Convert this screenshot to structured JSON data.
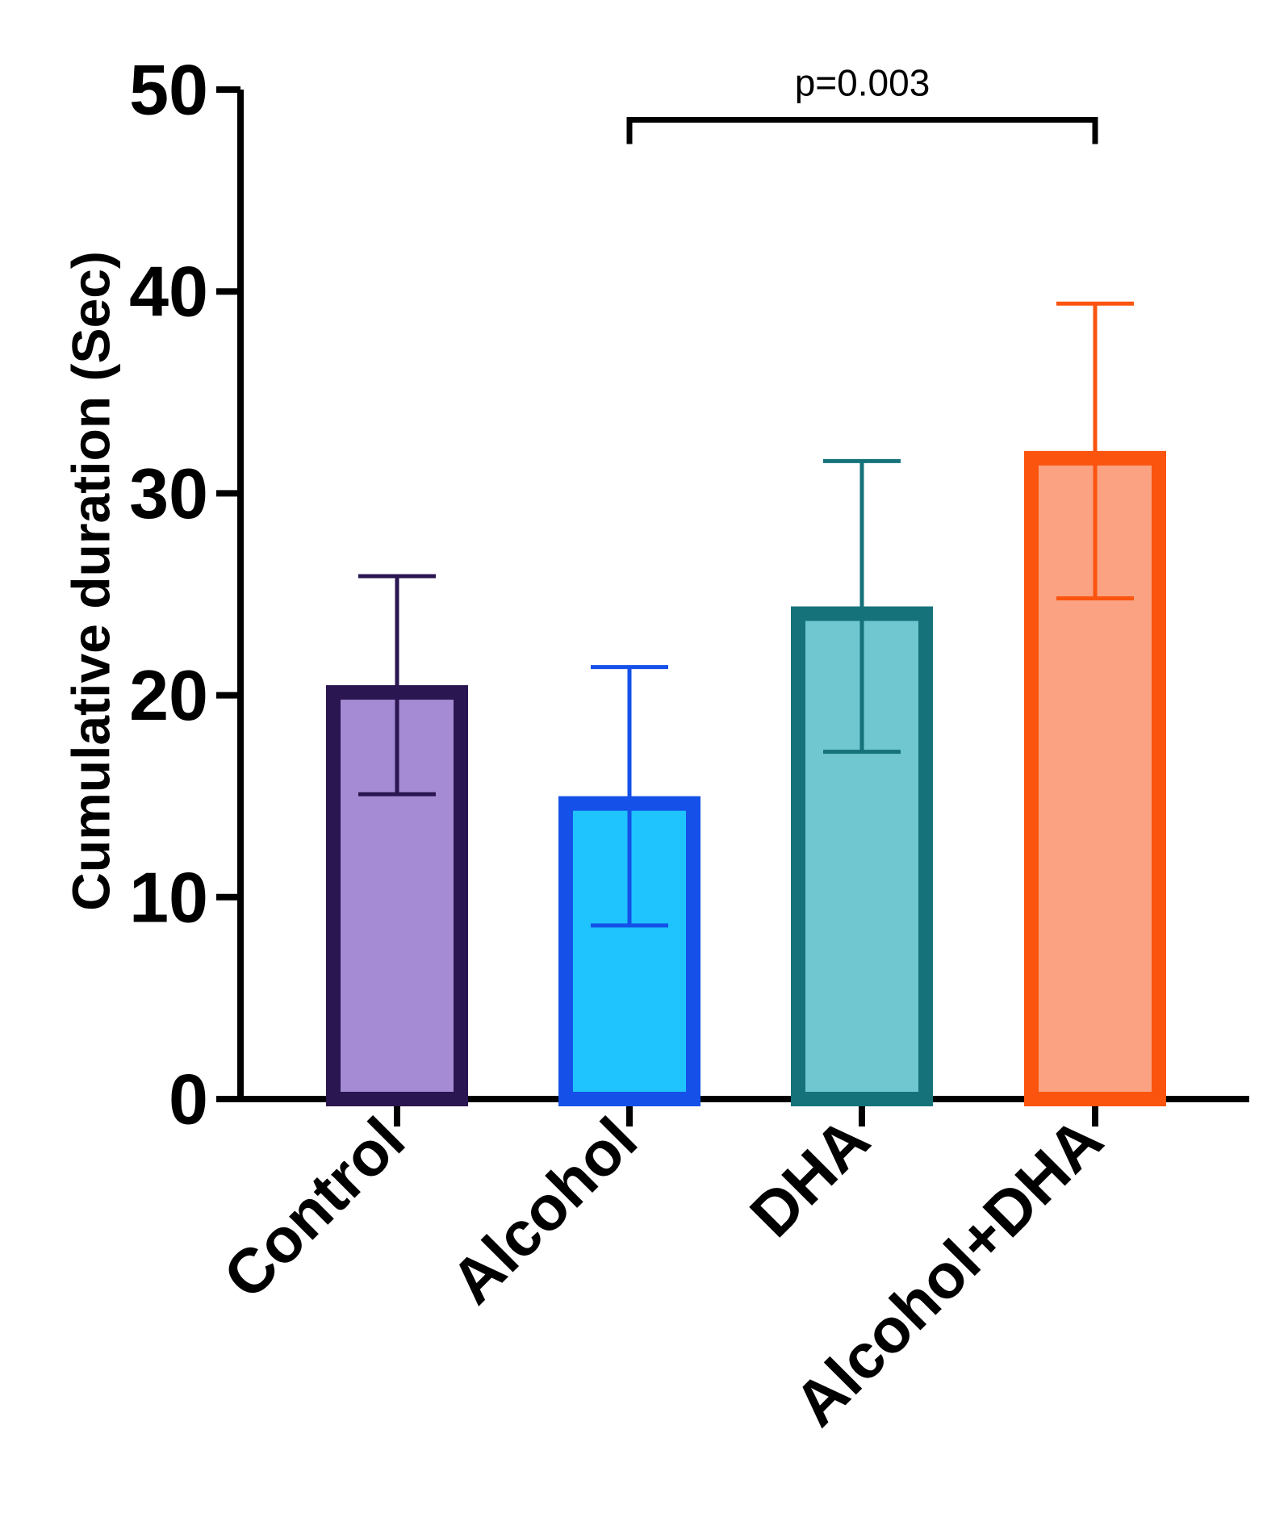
{
  "chart_data": {
    "type": "bar",
    "ylabel": "Cumulative duration  (Sec)",
    "xlabel": "",
    "ylim": [
      0,
      50
    ],
    "yticks": [
      0,
      10,
      20,
      30,
      40,
      50
    ],
    "ytick_labels": [
      "0",
      "10",
      "20",
      "30",
      "40",
      "50"
    ],
    "categories": [
      "Control",
      "Alcohol",
      "DHA",
      "Alcohol+DHA"
    ],
    "values": [
      20.5,
      15.0,
      24.4,
      32.1
    ],
    "error": [
      5.4,
      6.4,
      7.2,
      7.3
    ],
    "bar_fill_colors": [
      "#a58bd3",
      "#1fc3fd",
      "#70c7cf",
      "#faa281"
    ],
    "bar_edge_colors": [
      "#2a1650",
      "#1550e8",
      "#15727a",
      "#fa540f"
    ],
    "annotations": [
      {
        "text": "p=0.003",
        "from": "Alcohol",
        "to": "Alcohol+DHA",
        "y": 48.5
      }
    ],
    "grid": false,
    "legend": "none"
  }
}
